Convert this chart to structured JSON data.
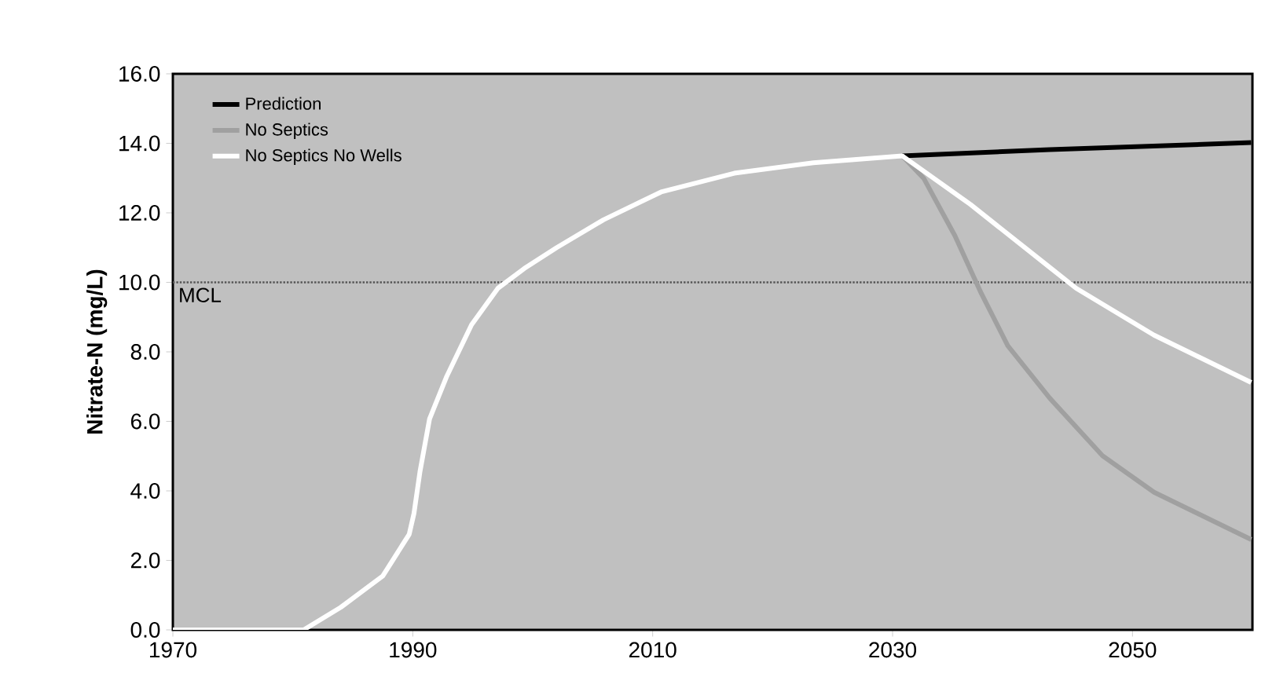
{
  "chart_data": {
    "type": "line",
    "ylabel": "Nitrate-N (mg/L)",
    "xlim": [
      1970,
      2060
    ],
    "ylim": [
      0,
      16
    ],
    "xticks": [
      1970,
      1990,
      2010,
      2030,
      2050
    ],
    "yticks": [
      {
        "value": 0,
        "label": "0.0"
      },
      {
        "value": 2,
        "label": "2.0"
      },
      {
        "value": 4,
        "label": "4.0"
      },
      {
        "value": 6,
        "label": "6.0"
      },
      {
        "value": 8,
        "label": "8.0"
      },
      {
        "value": 10,
        "label": "10.0"
      },
      {
        "value": 12,
        "label": "12.0"
      },
      {
        "value": 14,
        "label": "14.0"
      },
      {
        "value": 16,
        "label": "16.0"
      }
    ],
    "legend": "top left",
    "marker": "none",
    "ref_lines": [
      {
        "axis": "y",
        "value": 10,
        "label": "MCL",
        "color": "#555555",
        "line_style": "dotted"
      }
    ],
    "series": [
      {
        "name": "Prediction",
        "color": "#000000",
        "x": [
          2030.8,
          2043.1,
          2059.9
        ],
        "values": [
          13.64,
          13.82,
          14.02
        ]
      },
      {
        "name": "No Septics",
        "color": "#a0a0a0",
        "x": [
          2030.8,
          2032.6,
          2035.2,
          2037.4,
          2039.6,
          2043.1,
          2047.5,
          2051.8,
          2059.9
        ],
        "values": [
          13.64,
          12.99,
          11.34,
          9.68,
          8.18,
          6.67,
          5.01,
          3.96,
          2.6
        ]
      },
      {
        "name": "No Septics No Wells",
        "color": "#ffffff",
        "x": [
          1970,
          1980.9,
          1984.0,
          1987.5,
          1989.7,
          1990.1,
          1990.6,
          1991.4,
          1992.8,
          1994.9,
          1997.1,
          1999.3,
          2002.0,
          2005.9,
          2010.7,
          2016.8,
          2023.4,
          2030.8,
          2036.5,
          2043.1,
          2045.3,
          2051.8,
          2059.9
        ],
        "values": [
          0,
          0,
          0.65,
          1.55,
          2.75,
          3.35,
          4.55,
          6.07,
          7.27,
          8.78,
          9.83,
          10.4,
          11.0,
          11.8,
          12.6,
          13.14,
          13.44,
          13.64,
          12.24,
          10.43,
          9.83,
          8.48,
          7.12
        ]
      }
    ]
  }
}
